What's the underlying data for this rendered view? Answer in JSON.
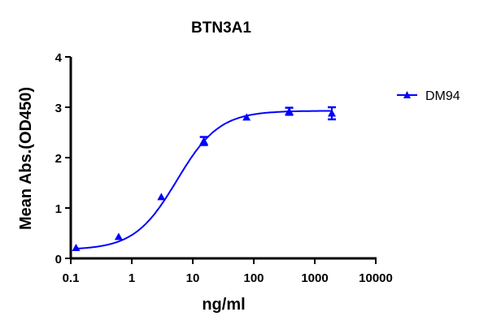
{
  "chart_data": {
    "type": "scatter",
    "title": "BTN3A1",
    "xlabel": "ng/ml",
    "ylabel": "Mean Abs.(OD450)",
    "xscale": "log",
    "xlim": [
      0.1,
      10000
    ],
    "ylim": [
      0,
      4
    ],
    "x_ticks": [
      "0.1",
      "1",
      "10",
      "100",
      "1000",
      "10000"
    ],
    "y_ticks": [
      "0",
      "1",
      "2",
      "3",
      "4"
    ],
    "grid": false,
    "legend_position": "right",
    "fit": "sigmoidal 4PL curve",
    "series": [
      {
        "name": "DM94",
        "color": "#0000ff",
        "marker": "triangle",
        "x": [
          0.122,
          0.61,
          3.05,
          15.2,
          76.2,
          381,
          1905
        ],
        "y": [
          0.21,
          0.43,
          1.22,
          2.33,
          2.8,
          2.92,
          2.88
        ],
        "error": [
          0.02,
          0.02,
          0.03,
          0.08,
          0.03,
          0.07,
          0.12
        ]
      }
    ]
  },
  "legend": {
    "label": "DM94"
  }
}
